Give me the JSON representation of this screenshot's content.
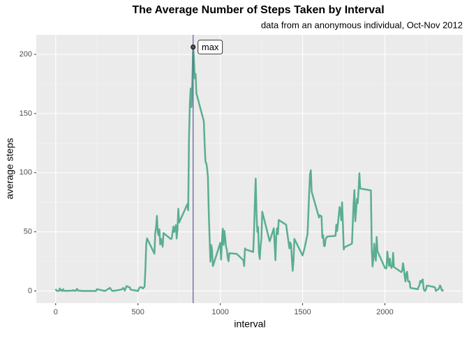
{
  "chart_data": {
    "type": "line",
    "title": "The Average Number of Steps Taken by Interval",
    "subtitle": "data from an anonymous individual, Oct-Nov 2012",
    "x_label": "interval",
    "y_label": "average steps",
    "x": [
      0,
      5,
      10,
      15,
      20,
      25,
      30,
      35,
      40,
      45,
      50,
      55,
      100,
      105,
      110,
      115,
      120,
      125,
      130,
      135,
      140,
      145,
      150,
      155,
      200,
      230,
      245,
      250,
      300,
      330,
      340,
      350,
      400,
      410,
      420,
      430,
      440,
      450,
      455,
      500,
      505,
      510,
      520,
      530,
      540,
      545,
      550,
      555,
      600,
      605,
      610,
      615,
      620,
      625,
      630,
      635,
      640,
      650,
      655,
      700,
      705,
      715,
      720,
      730,
      735,
      740,
      745,
      750,
      800,
      805,
      810,
      815,
      820,
      825,
      830,
      835,
      840,
      845,
      850,
      855,
      900,
      905,
      910,
      915,
      920,
      925,
      930,
      935,
      940,
      945,
      950,
      955,
      1000,
      1005,
      1010,
      1015,
      1020,
      1025,
      1030,
      1035,
      1040,
      1045,
      1050,
      1055,
      1100,
      1140,
      1145,
      1150,
      1155,
      1200,
      1205,
      1210,
      1215,
      1220,
      1225,
      1230,
      1235,
      1240,
      1245,
      1250,
      1255,
      1300,
      1325,
      1330,
      1335,
      1340,
      1345,
      1350,
      1355,
      1400,
      1420,
      1425,
      1430,
      1435,
      1440,
      1445,
      1450,
      1500,
      1510,
      1530,
      1535,
      1540,
      1545,
      1550,
      1555,
      1600,
      1605,
      1615,
      1620,
      1625,
      1630,
      1635,
      1640,
      1645,
      1650,
      1700,
      1705,
      1710,
      1725,
      1730,
      1735,
      1740,
      1745,
      1750,
      1755,
      1800,
      1805,
      1810,
      1815,
      1820,
      1825,
      1830,
      1835,
      1840,
      1845,
      1850,
      1915,
      1920,
      1925,
      1930,
      1935,
      1940,
      1945,
      1950,
      1955,
      2000,
      2005,
      2010,
      2015,
      2020,
      2025,
      2030,
      2035,
      2040,
      2045,
      2050,
      2055,
      2100,
      2105,
      2110,
      2115,
      2120,
      2125,
      2130,
      2135,
      2140,
      2145,
      2150,
      2155,
      2200,
      2205,
      2210,
      2215,
      2220,
      2225,
      2230,
      2235,
      2240,
      2245,
      2250,
      2255,
      2300,
      2305,
      2310,
      2315,
      2320,
      2325,
      2330,
      2335,
      2340,
      2345,
      2350,
      2355
    ],
    "series": [
      {
        "name": "average steps",
        "color": "#5aae8f",
        "values": [
          1.7,
          0.3,
          0.1,
          0.2,
          0.1,
          2.1,
          0.5,
          0.9,
          0,
          1.5,
          0.3,
          0.1,
          0.3,
          0.7,
          0.2,
          0.3,
          0,
          1.1,
          1.8,
          0.2,
          0.2,
          0.4,
          0.3,
          0,
          0,
          0,
          0,
          1.5,
          0,
          2.6,
          0.5,
          0,
          1.2,
          2.6,
          0.3,
          4.1,
          3.5,
          3.1,
          1.1,
          0,
          1.6,
          3,
          3.3,
          2.1,
          3.7,
          18,
          39,
          44.5,
          31.5,
          49.3,
          53.8,
          63.5,
          50,
          47.1,
          52.2,
          39.3,
          44.1,
          37.4,
          49,
          43.8,
          44.4,
          54.5,
          49.9,
          55.7,
          44.3,
          52.3,
          69.5,
          57.8,
          73.4,
          68.2,
          129.4,
          157.5,
          171.2,
          155.4,
          177.3,
          206.2,
          195.9,
          179.6,
          183.4,
          167,
          143.5,
          124,
          109.1,
          108.1,
          103.7,
          96,
          66.2,
          45.2,
          24.8,
          38.8,
          35,
          21,
          40.6,
          26.5,
          42.4,
          52.7,
          38.9,
          50.8,
          44.3,
          37.4,
          34.7,
          28.3,
          25.1,
          31.9,
          31.4,
          26,
          21,
          36,
          35,
          33,
          50,
          75,
          95,
          66,
          50,
          54,
          32,
          27,
          38,
          45,
          67,
          42,
          53,
          40,
          26,
          47,
          53,
          48,
          60,
          56,
          36,
          41,
          39,
          27,
          17,
          26,
          44,
          30,
          35,
          48,
          65,
          82.9,
          98.7,
          102,
          84,
          62,
          64,
          63,
          45,
          47,
          38,
          38,
          44,
          45,
          46,
          46.6,
          56,
          50.7,
          71,
          68,
          59.7,
          75,
          56.5,
          35,
          37,
          40,
          58,
          74.7,
          85.3,
          59,
          67.8,
          77.7,
          74.2,
          85.3,
          99.5,
          86.6,
          85,
          36.5,
          20.7,
          27.4,
          40,
          30.2,
          25.5,
          45.7,
          33.5,
          19.6,
          19,
          19.3,
          33.3,
          26.8,
          21.2,
          27.3,
          21.3,
          19.5,
          21.3,
          32.3,
          20.2,
          15.9,
          17.2,
          23.5,
          19.2,
          12.5,
          8,
          14.7,
          16.3,
          8.7,
          7.8,
          8.1,
          2.6,
          1.5,
          3.7,
          4.8,
          8.5,
          7.1,
          8.7,
          9.8,
          2.2,
          0.3,
          0.1,
          1.6,
          4.6,
          3.3,
          2.8,
          0,
          0.8,
          1,
          1.6,
          2.6,
          4.7,
          3.3,
          0.6,
          0.2,
          1.1
        ]
      }
    ],
    "vline": 835,
    "vline_color": "#5a5a9a",
    "max_point": {
      "x": 835,
      "y": 206.2
    },
    "annotation": "max",
    "xlim": [
      -117.75,
      2472.75
    ],
    "ylim": [
      -10.3,
      216.5
    ],
    "xticks": [
      0,
      500,
      1000,
      1500,
      2000
    ],
    "yticks": [
      0,
      50,
      100,
      150,
      200
    ],
    "grid": true
  }
}
